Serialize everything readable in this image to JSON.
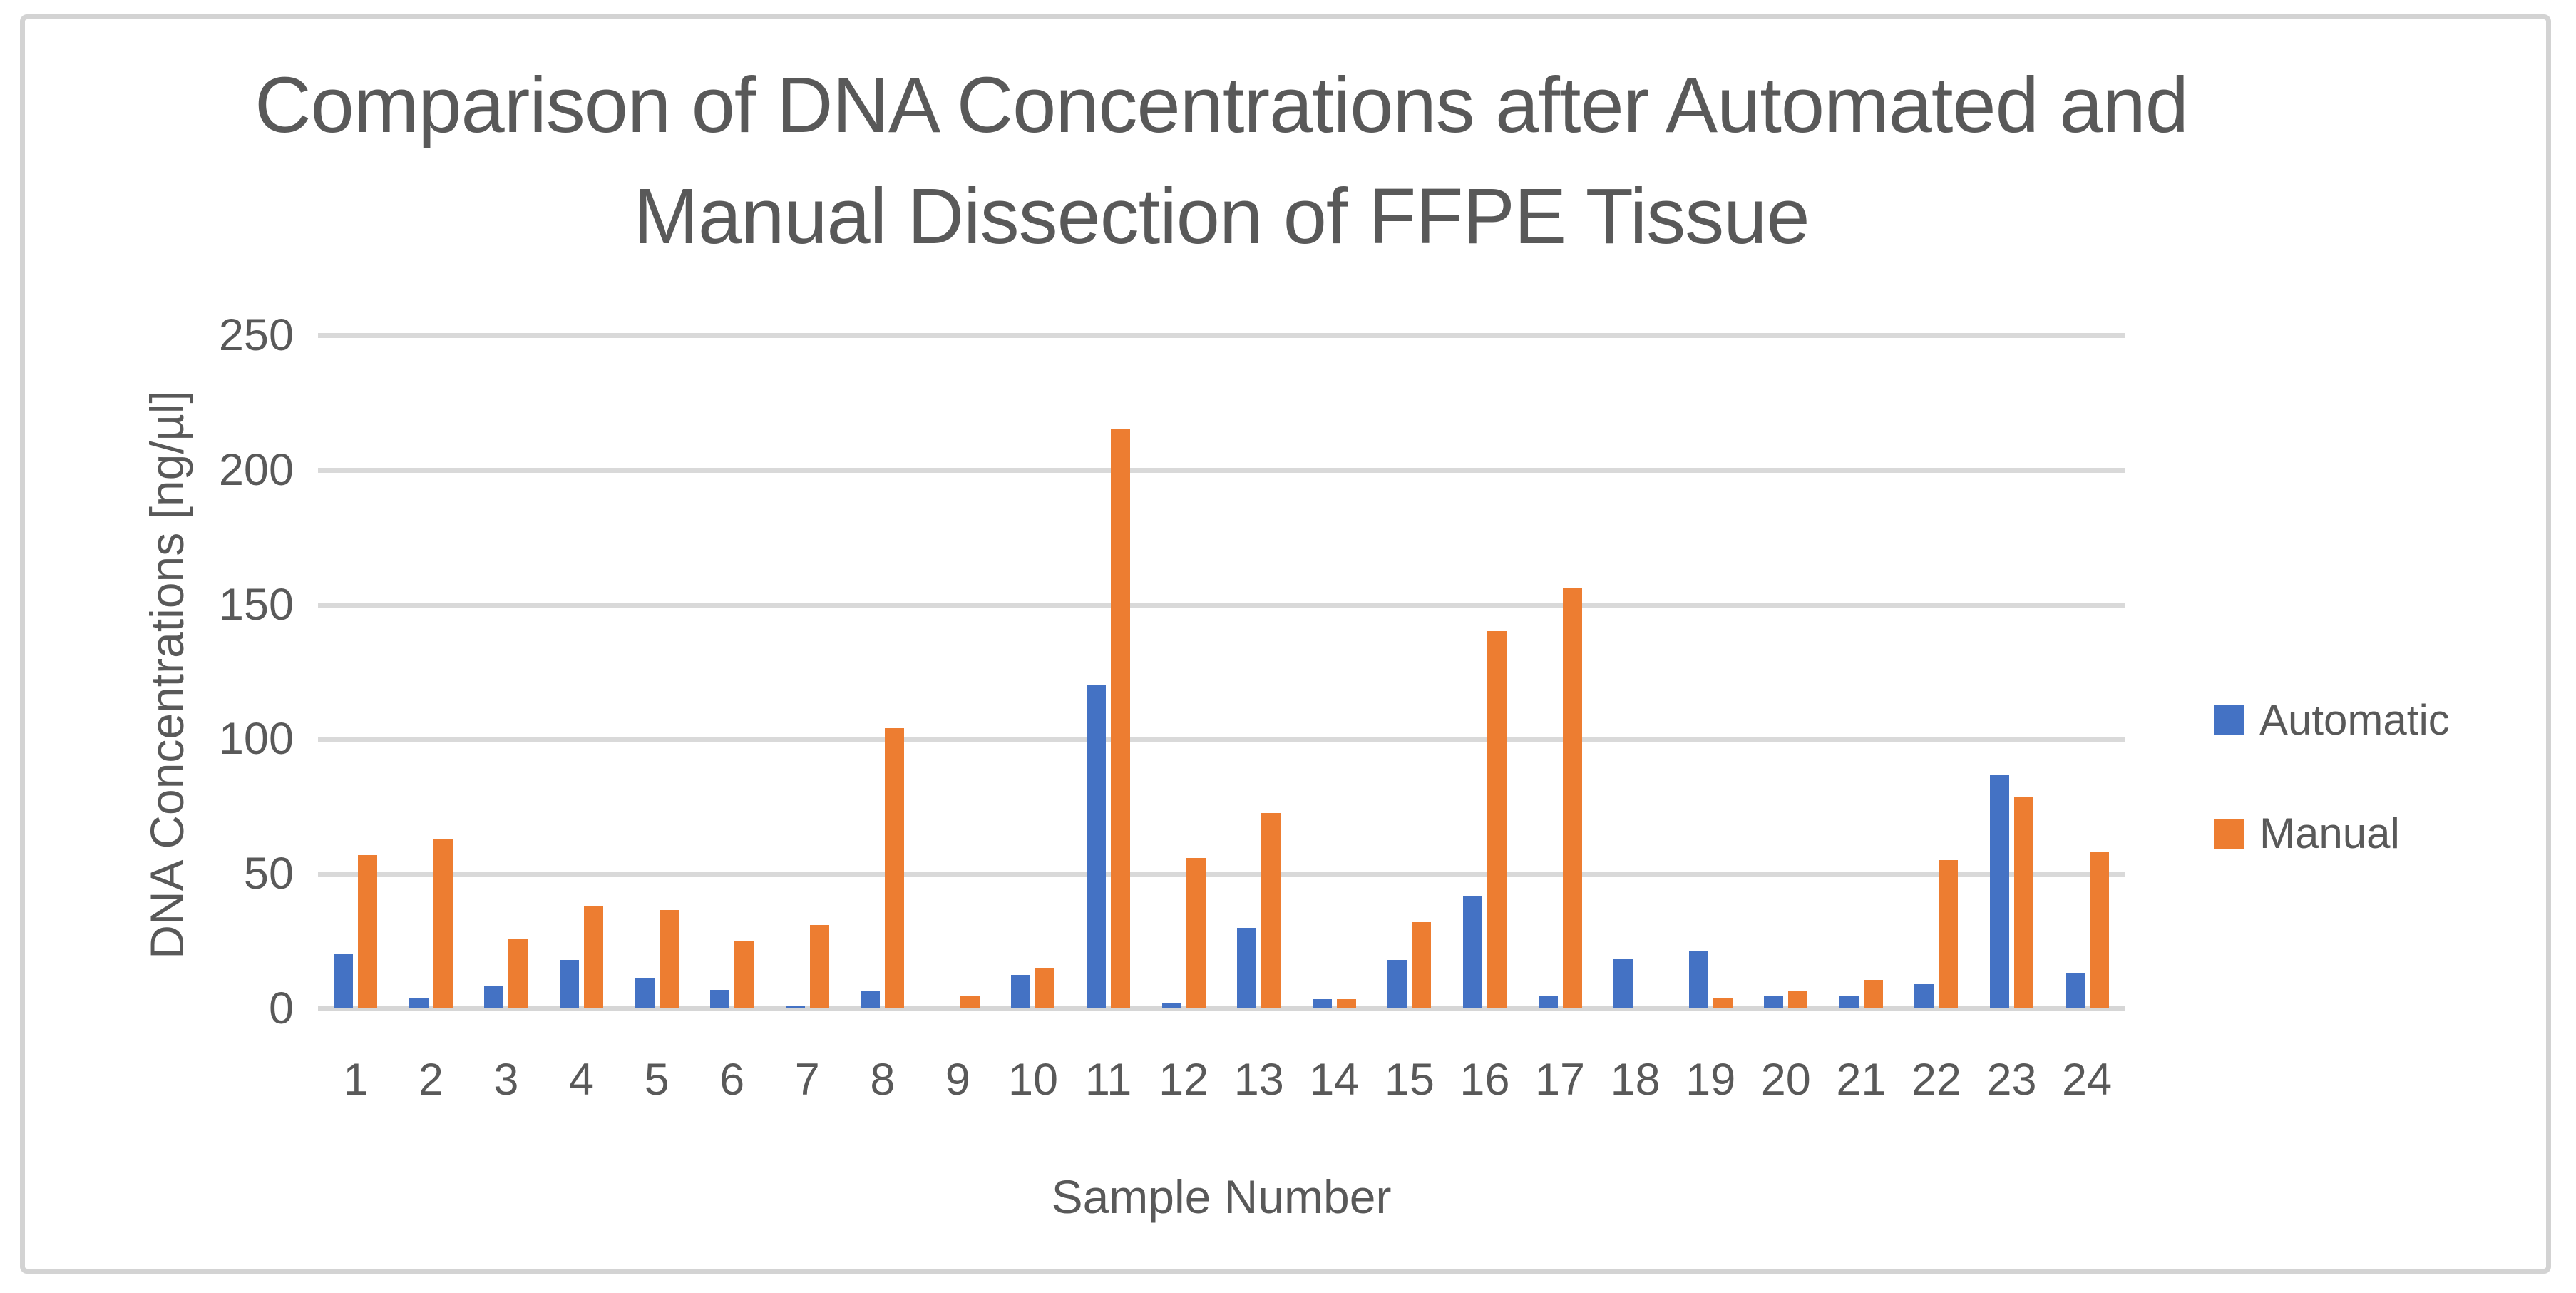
{
  "chart_data": {
    "type": "bar",
    "title": "Comparison of DNA Concentrations after Automated and Manual Dissection of FFPE Tissue",
    "xlabel": "Sample Number",
    "ylabel": "DNA Concentrations [ng/µl]",
    "ylim": [
      0,
      250
    ],
    "yticks": [
      250,
      200,
      150,
      100,
      50,
      0
    ],
    "grid": true,
    "legend_position": "right",
    "categories": [
      "1",
      "2",
      "3",
      "4",
      "5",
      "6",
      "7",
      "8",
      "9",
      "10",
      "11",
      "12",
      "13",
      "14",
      "15",
      "16",
      "17",
      "18",
      "19",
      "20",
      "21",
      "22",
      "23",
      "24"
    ],
    "series": [
      {
        "name": "Automatic",
        "color": "#4472C4",
        "values": [
          20,
          4,
          8.5,
          18,
          11.5,
          7,
          1,
          6.5,
          0,
          12.5,
          120,
          2,
          30,
          3.5,
          18,
          41.5,
          4.5,
          18.5,
          21.5,
          4.5,
          4.5,
          9,
          87,
          13
        ]
      },
      {
        "name": "Manual",
        "color": "#ED7D31",
        "values": [
          57,
          63,
          26,
          38,
          36.5,
          25,
          31,
          104,
          4.5,
          15,
          215,
          56,
          72.5,
          3.5,
          32,
          140,
          156,
          0,
          4,
          6.5,
          10.5,
          55,
          78.5,
          58
        ]
      }
    ],
    "colors": {
      "text": "#595959",
      "gridline": "#D9D9D9",
      "frame_border": "#D3D3D3",
      "background": "#FFFFFF"
    }
  }
}
